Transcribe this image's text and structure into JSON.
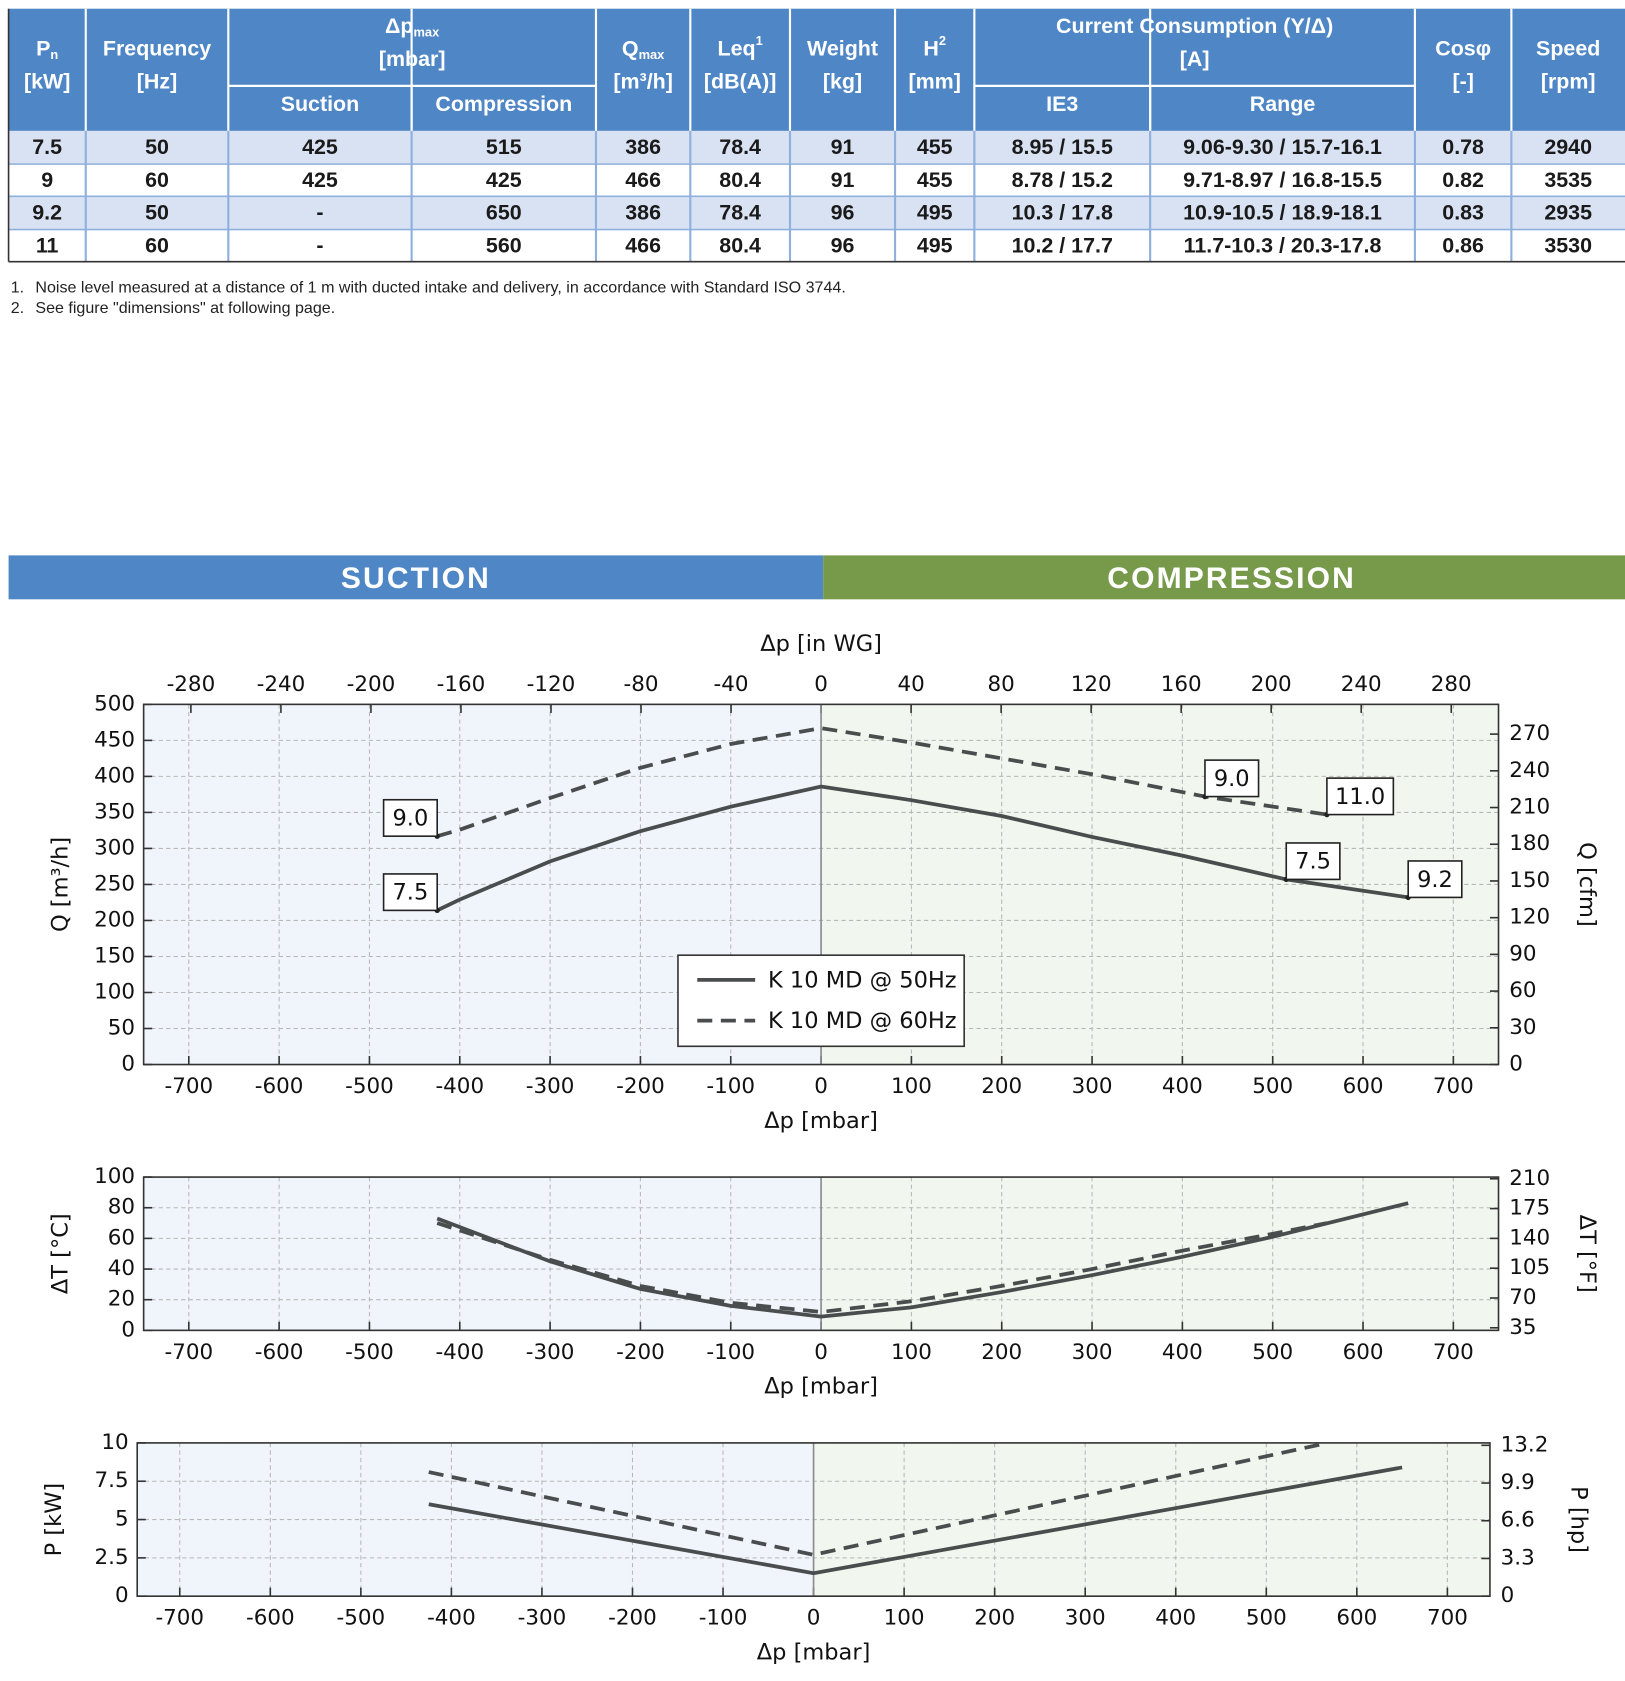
{
  "table": {
    "header": [
      {
        "text": "P",
        "sub": "n",
        "unit": "[kW]"
      },
      {
        "text": "Frequency",
        "unit": "[Hz]"
      },
      {
        "text": "Δp",
        "sub": "max",
        "unit": "[mbar]",
        "children": [
          "Suction",
          "Compression"
        ]
      },
      {
        "text": "Q",
        "sub": "max",
        "unit": "[m³/h]"
      },
      {
        "text": "Leq",
        "sup": "1",
        "unit": "[dB(A)]"
      },
      {
        "text": "Weight",
        "unit": "[kg]"
      },
      {
        "text": "H",
        "sup": "2",
        "unit": "[mm]"
      },
      {
        "text": "Current Consumption (Y/Δ)",
        "unit": "[A]",
        "children": [
          "IE3",
          "Range"
        ]
      },
      {
        "text": "Cosφ",
        "unit": "[-]"
      },
      {
        "text": "Speed",
        "unit": "[rpm]"
      }
    ],
    "rows": [
      [
        "7.5",
        "50",
        "425",
        "515",
        "386",
        "78.4",
        "91",
        "455",
        "8.95 / 15.5",
        "9.06-9.30 / 15.7-16.1",
        "0.78",
        "2940"
      ],
      [
        "9",
        "60",
        "425",
        "425",
        "466",
        "80.4",
        "91",
        "455",
        "8.78 / 15.2",
        "9.71-8.97 / 16.8-15.5",
        "0.82",
        "3535"
      ],
      [
        "9.2",
        "50",
        "-",
        "650",
        "386",
        "78.4",
        "96",
        "495",
        "10.3 / 17.8",
        "10.9-10.5 / 18.9-18.1",
        "0.83",
        "2935"
      ],
      [
        "11",
        "60",
        "-",
        "560",
        "466",
        "80.4",
        "96",
        "495",
        "10.2 / 17.7",
        "11.7-10.3 / 20.3-17.8",
        "0.86",
        "3530"
      ]
    ]
  },
  "footnotes": [
    {
      "n": "1.",
      "text": "Noise level measured at a distance of 1 m with ducted intake and delivery, in accordance with Standard ISO 3744."
    },
    {
      "n": "2.",
      "text": "See figure \"dimensions\" at following page."
    }
  ],
  "banner": {
    "left": "SUCTION",
    "right": "COMPRESSION"
  },
  "chart_data": [
    {
      "type": "line",
      "x2label": "Δp [in WG]",
      "xlabel": "Δp [mbar]",
      "ylabel": "Q [m³/h]",
      "y2label": "Q [cfm]",
      "xlim": [
        -750,
        750
      ],
      "xticks": [
        -700,
        -600,
        -500,
        -400,
        -300,
        -200,
        -100,
        0,
        100,
        200,
        300,
        400,
        500,
        600,
        700
      ],
      "x2lim": [
        -301,
        301
      ],
      "x2ticks": [
        -280,
        -240,
        -200,
        -160,
        -120,
        -80,
        -40,
        0,
        40,
        80,
        120,
        160,
        200,
        240,
        280
      ],
      "ylim": [
        0,
        500
      ],
      "yticks": [
        0,
        50,
        100,
        150,
        200,
        250,
        300,
        350,
        400,
        450,
        500
      ],
      "y2lim": [
        0,
        294.3
      ],
      "y2ticks": [
        0,
        30,
        60,
        90,
        120,
        150,
        180,
        210,
        240,
        270
      ],
      "grid": true,
      "legend": "lower center",
      "series": [
        {
          "name": "K 10 MD @ 50Hz",
          "color": "#4a4d4d",
          "line_style": "solid",
          "x": [
            -425,
            -400,
            -300,
            -200,
            -100,
            0,
            100,
            200,
            300,
            400,
            515,
            650
          ],
          "values": [
            214,
            229,
            282,
            324,
            358,
            386,
            367,
            345,
            316,
            290,
            257,
            232
          ]
        },
        {
          "name": "K 10 MD @ 60Hz",
          "color": "#4a4d4d",
          "line_style": "dashed",
          "x": [
            -425,
            -400,
            -300,
            -200,
            -100,
            0,
            100,
            200,
            300,
            425,
            560
          ],
          "values": [
            317,
            326,
            370,
            412,
            445,
            467,
            447,
            425,
            403,
            372,
            347
          ]
        }
      ],
      "annotations": [
        {
          "text": "9.0",
          "x": -425,
          "y": 317
        },
        {
          "text": "7.5",
          "x": -425,
          "y": 214
        },
        {
          "text": "9.0",
          "x": 425,
          "y": 372
        },
        {
          "text": "11.0",
          "x": 560,
          "y": 347
        },
        {
          "text": "7.5",
          "x": 515,
          "y": 257
        },
        {
          "text": "9.2",
          "x": 650,
          "y": 232
        }
      ]
    },
    {
      "type": "line",
      "xlabel": "Δp [mbar]",
      "ylabel": "ΔT [°C]",
      "y2label": "ΔT [°F]",
      "xlim": [
        -750,
        750
      ],
      "xticks": [
        -700,
        -600,
        -500,
        -400,
        -300,
        -200,
        -100,
        0,
        100,
        200,
        300,
        400,
        500,
        600,
        700
      ],
      "ylim": [
        0,
        100
      ],
      "yticks": [
        0,
        20,
        40,
        60,
        80,
        100
      ],
      "y2lim": [
        32,
        212
      ],
      "y2ticks": [
        35,
        70,
        105,
        140,
        175,
        210
      ],
      "grid": true,
      "series": [
        {
          "color": "#4a4d4d",
          "line_style": "solid",
          "x": [
            -425,
            -300,
            -200,
            -100,
            0,
            100,
            200,
            300,
            400,
            500,
            650
          ],
          "values": [
            73,
            45,
            27,
            16,
            9,
            15,
            25,
            36,
            48,
            61,
            83
          ]
        },
        {
          "color": "#4a4d4d",
          "line_style": "dashed",
          "x": [
            -425,
            -300,
            -200,
            -100,
            0,
            100,
            200,
            300,
            400,
            500,
            560
          ],
          "values": [
            70,
            46,
            29,
            18,
            12,
            19,
            29,
            40,
            52,
            63,
            70
          ]
        }
      ]
    },
    {
      "type": "line",
      "xlabel": "Δp [mbar]",
      "ylabel": "P [kW]",
      "y2label": "P [hp]",
      "xlim": [
        -747,
        747
      ],
      "xticks": [
        -700,
        -600,
        -500,
        -400,
        -300,
        -200,
        -100,
        0,
        100,
        200,
        300,
        400,
        500,
        600,
        700
      ],
      "ylim": [
        0,
        10
      ],
      "yticks": [
        0,
        2.5,
        5,
        7.5,
        10
      ],
      "y2lim": [
        0,
        13.41
      ],
      "y2ticks": [
        0,
        3.3,
        6.6,
        9.9,
        13.2
      ],
      "grid": true,
      "series": [
        {
          "color": "#4a4d4d",
          "line_style": "solid",
          "x": [
            -425,
            0,
            650
          ],
          "values": [
            6.0,
            1.5,
            8.4
          ]
        },
        {
          "color": "#4a4d4d",
          "line_style": "dashed",
          "x": [
            -425,
            0,
            560
          ],
          "values": [
            8.1,
            2.7,
            9.9
          ]
        }
      ]
    }
  ]
}
